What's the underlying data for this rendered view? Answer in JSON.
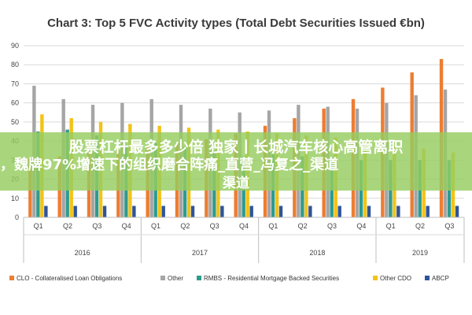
{
  "chart_data": {
    "type": "bar",
    "title": "Chart 3: Top 5 FVC Activity types (Total Debt Securities Issued €bn)",
    "y_ticks": [
      "0",
      "10",
      "20",
      "30",
      "40",
      "50",
      "60",
      "70",
      "80",
      "90"
    ],
    "ylim": [
      0,
      90
    ],
    "grid": true,
    "legend_position": "bottom",
    "categories": [
      "Q1",
      "Q2",
      "Q3",
      "Q4",
      "Q1",
      "Q2",
      "Q3",
      "Q4",
      "Q1",
      "Q2",
      "Q3",
      "Q4",
      "Q1",
      "Q2",
      "Q3"
    ],
    "years": [
      {
        "label": "2016",
        "start": 0,
        "count": 4
      },
      {
        "label": "2017",
        "start": 4,
        "count": 4
      },
      {
        "label": "2018",
        "start": 8,
        "count": 4
      },
      {
        "label": "2019",
        "start": 12,
        "count": 3
      }
    ],
    "series": [
      {
        "name": "CLO - Collateralised Loan Obligations",
        "color": "#ed7d31",
        "values": [
          31,
          32,
          34,
          35,
          37,
          39,
          41,
          44,
          48,
          52,
          57,
          62,
          68,
          76,
          83
        ]
      },
      {
        "name": "Other",
        "color": "#a5a5a5",
        "values": [
          69,
          62,
          59,
          60,
          62,
          59,
          57,
          55,
          56,
          59,
          58,
          57,
          60,
          64,
          67
        ]
      },
      {
        "name": "RMBS - Residential Mortgage Backed Securities",
        "color": "#2e9b8f",
        "values": [
          45,
          46,
          43,
          38,
          39,
          37,
          35,
          32,
          33,
          32,
          31,
          30,
          30,
          30,
          30
        ]
      },
      {
        "name": "Other CDO",
        "color": "#f2c318",
        "values": [
          54,
          52,
          50,
          49,
          48,
          47,
          46,
          45,
          44,
          43,
          42,
          40,
          38,
          36,
          34
        ]
      },
      {
        "name": "ABCP",
        "color": "#2f5597",
        "values": [
          6,
          6,
          6,
          6,
          6,
          6,
          6,
          6,
          6,
          6,
          6,
          6,
          6,
          6,
          6
        ]
      }
    ]
  },
  "overlay": {
    "line1": "股票杠杆最多多少倍 独家丨长城汽车核心高管离职",
    "line2": "，魏牌97%增速下的组织磨合阵痛_直营_冯复之_渠道",
    "line3": "渠道"
  }
}
